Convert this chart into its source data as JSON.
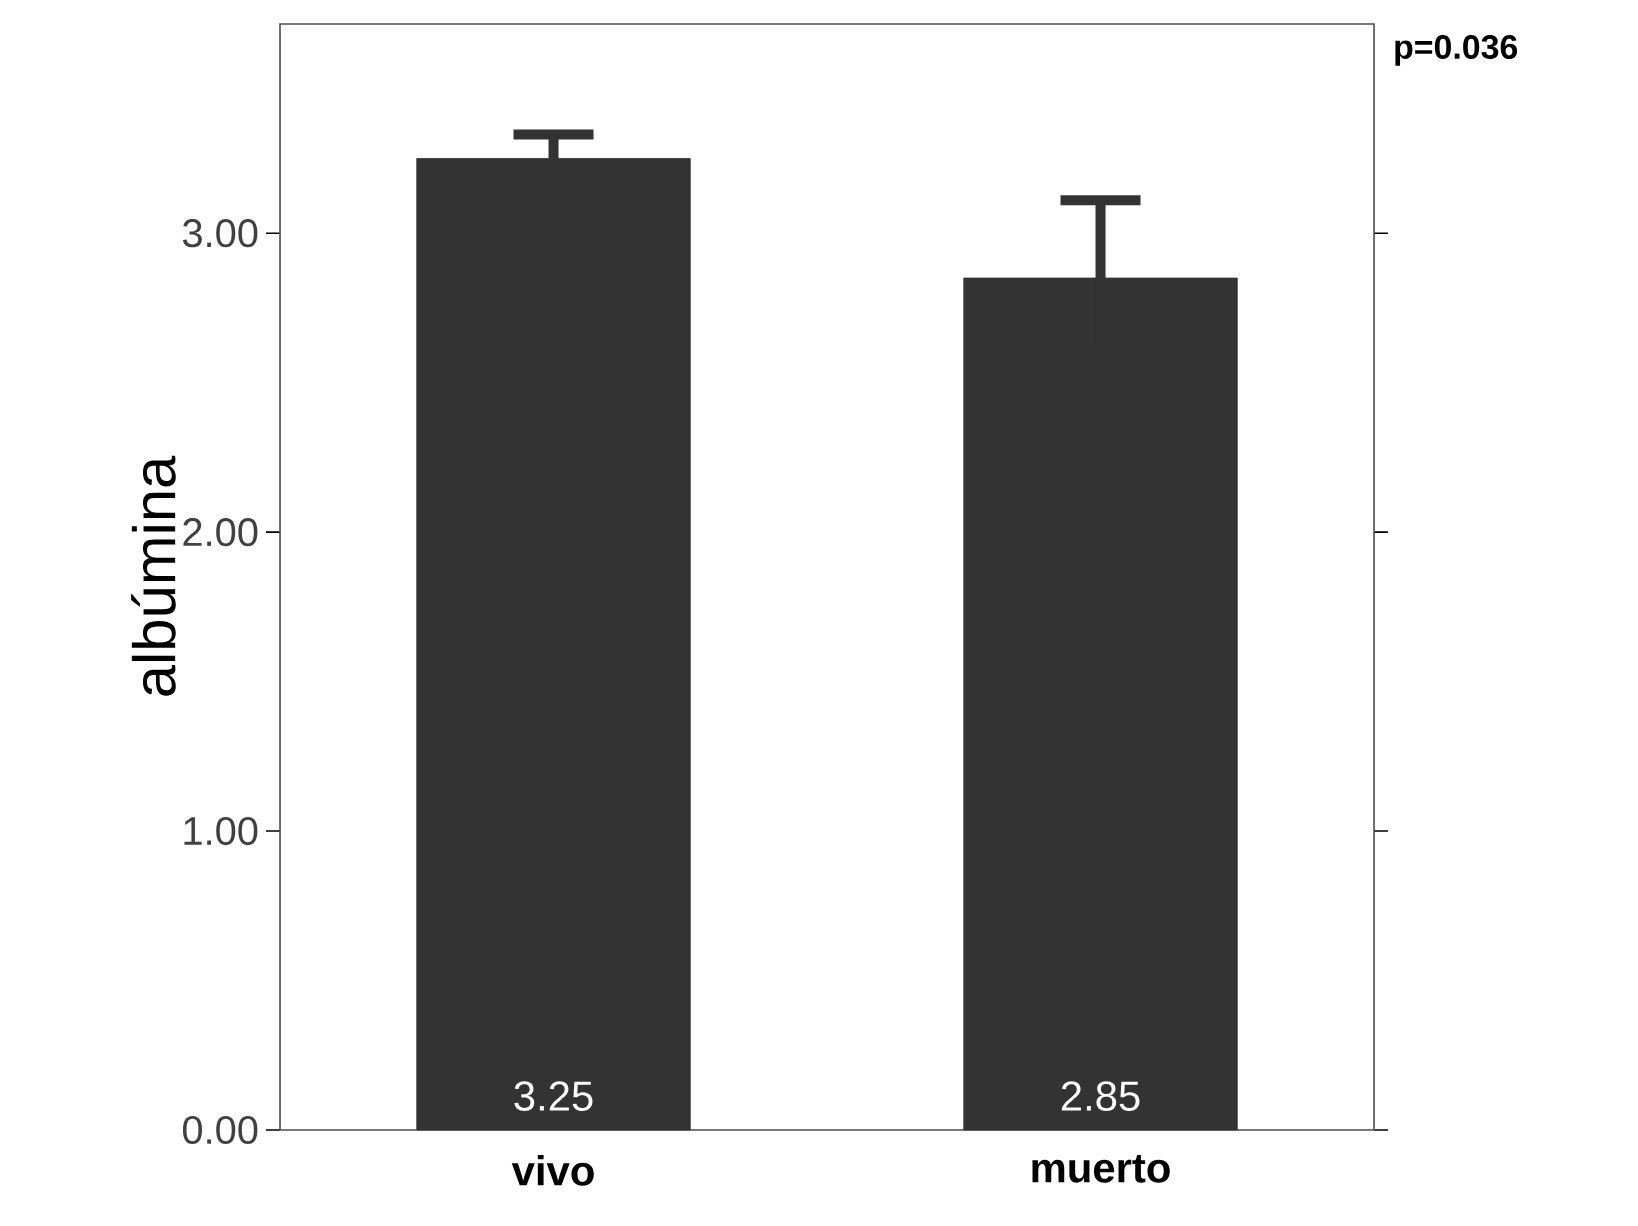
{
  "chart_data": {
    "type": "bar",
    "ylabel": "albúmina",
    "categories": [
      "vivo",
      "muerto"
    ],
    "values": [
      3.25,
      2.85
    ],
    "errors": [
      0.08,
      0.26
    ],
    "color": "#333333",
    "data_labels": true,
    "ylim": [
      0,
      3.7
    ],
    "yticks": [
      {
        "value": 0,
        "label": "0.00"
      },
      {
        "value": 1,
        "label": "1.00"
      },
      {
        "value": 2,
        "label": "2.00"
      },
      {
        "value": 3,
        "label": "3.00"
      }
    ],
    "annotations": [
      "p=0.036"
    ]
  }
}
